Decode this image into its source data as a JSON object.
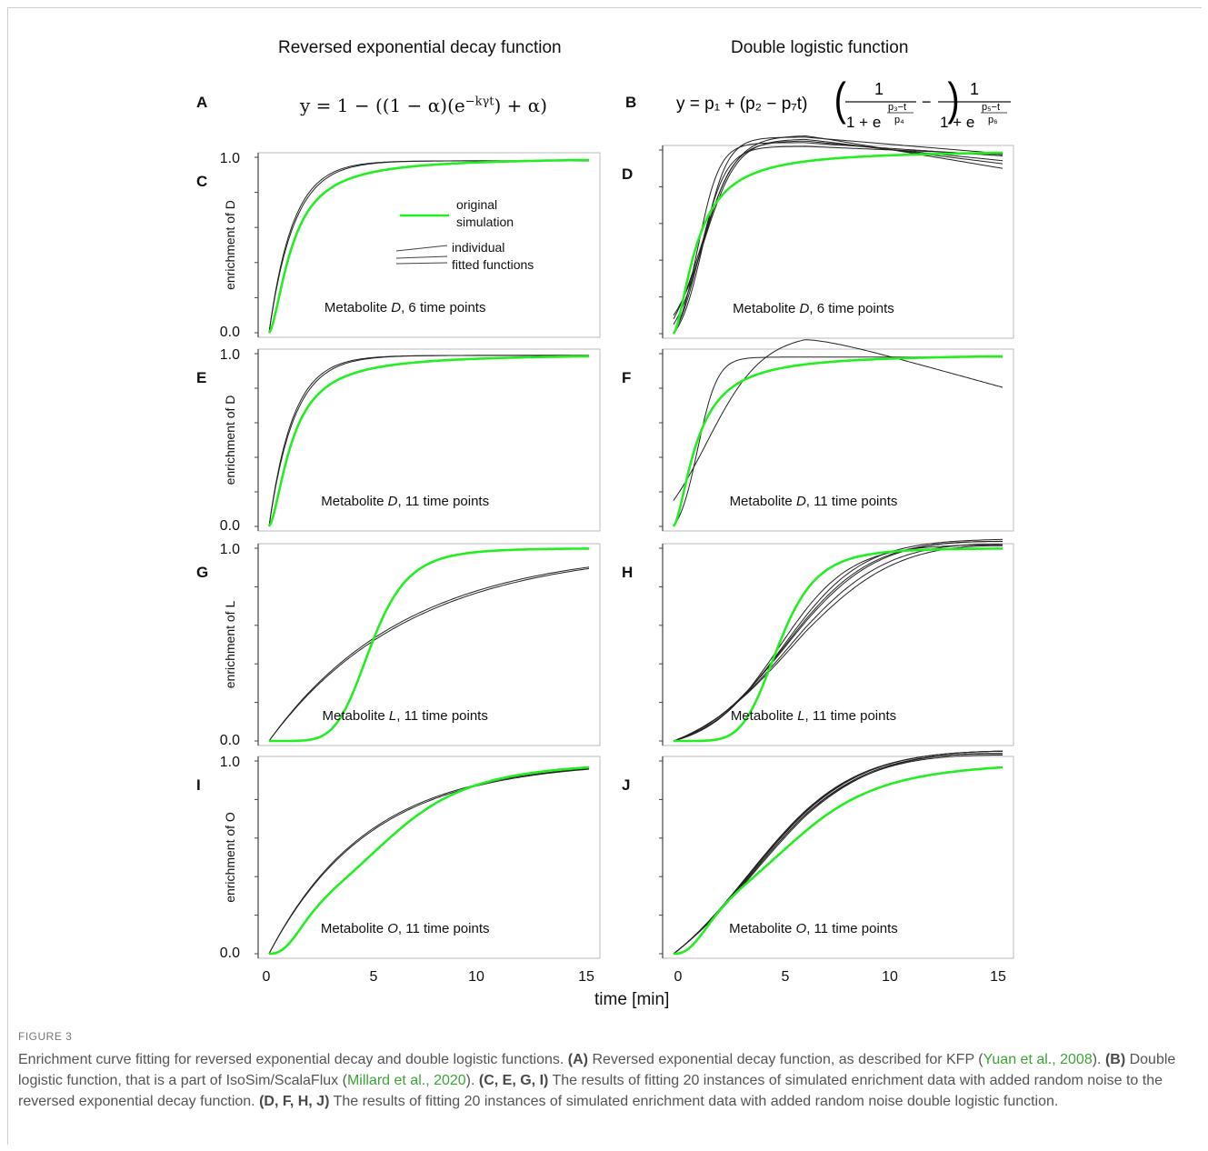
{
  "figure": {
    "col_titles": [
      "Reversed exponential decay function",
      "Double logistic function"
    ],
    "xlabel": "time [min]",
    "equations": {
      "A": {
        "letter": "A",
        "text": "y = 1 − ((1 − α)(e",
        "exponent": "−kγt",
        "tail": ") + α)"
      },
      "B": {
        "letter": "B",
        "lhs": "y = p₁ + (p₂ − p₇t)",
        "num1": "1",
        "den1_base": "1 + e",
        "den1_exp_num": "p₃−t",
        "den1_exp_den": "p₄",
        "minus": "−",
        "num2": "1",
        "den2_base": "1 + e",
        "den2_exp_num": "p₅−t",
        "den2_exp_den": "p₆"
      }
    },
    "legend": {
      "original_line1": "original",
      "original_line2": "simulation",
      "fitted_line1": "individual",
      "fitted_line2": "fitted functions"
    },
    "colors": {
      "original": "#22ee22",
      "fitted": "#222222",
      "axis": "#444444",
      "caption_link": "#3aa535"
    },
    "caption": {
      "heading": "FIGURE 3",
      "s1": "Enrichment curve fitting for reversed exponential decay and double logistic functions. ",
      "b1": "(A)",
      "s2": " Reversed exponential decay function, as described for KFP (",
      "l1": "Yuan et al., 2008",
      "s3": "). ",
      "b2": "(B)",
      "s4": " Double logistic function, that is a part of IsoSim/ScalaFlux (",
      "l2": "Millard et al., 2020",
      "s5": "). ",
      "b3": "(C, E, G, I)",
      "s6": " The results of fitting 20 instances of simulated enrichment data with added random noise to the reversed exponential decay function. ",
      "b4": "(D, F, H, J)",
      "s7": " The results of fitting 20 instances of simulated enrichment data with added random noise double logistic function."
    }
  },
  "chart_data": [
    {
      "panel": "C",
      "type": "line",
      "metabolite": "D",
      "label_pre": "Metabolite ",
      "label_post": ", 6 time points",
      "ylabel": "enrichment of D",
      "yticks": [
        "1.0",
        "0.0"
      ],
      "xlim": [
        0,
        15
      ],
      "ylim": [
        0,
        1
      ],
      "series": [
        {
          "name": "original simulation",
          "model": "hill",
          "params": {
            "n": 1.6,
            "K": 1.1
          }
        },
        {
          "name": "individual fitted functions",
          "model": "expdecay",
          "params": {
            "ks": [
              0.85,
              0.9
            ],
            "top": 0.98
          }
        }
      ]
    },
    {
      "panel": "D",
      "type": "line",
      "metabolite": "D",
      "label_pre": "Metabolite ",
      "label_post": ", 6 time points",
      "ylabel": "",
      "yticks": [],
      "xlim": [
        0,
        15
      ],
      "ylim": [
        0,
        1
      ],
      "series": [
        {
          "name": "original simulation",
          "model": "hill",
          "params": {
            "n": 1.6,
            "K": 1.1
          }
        },
        {
          "name": "individual fitted functions",
          "model": "dlog",
          "params": {
            "variants": [
              [
                0.0,
                1.02,
                1.2,
                0.6,
                0.005
              ],
              [
                0.05,
                1.05,
                1.3,
                0.7,
                0.012
              ],
              [
                0.08,
                1.08,
                1.25,
                0.8,
                0.02
              ],
              [
                0.0,
                1.04,
                1.1,
                0.5,
                0.008
              ],
              [
                0.1,
                1.06,
                1.4,
                0.75,
                0.015
              ],
              [
                0.0,
                1.07,
                1.35,
                0.55,
                0.01
              ]
            ]
          }
        }
      ]
    },
    {
      "panel": "E",
      "type": "line",
      "metabolite": "D",
      "label_pre": "Metabolite ",
      "label_post": ", 11 time points",
      "ylabel": "enrichment of D",
      "yticks": [
        "1.0",
        "0.0"
      ],
      "xlim": [
        0,
        15
      ],
      "ylim": [
        0,
        1
      ],
      "series": [
        {
          "name": "original simulation",
          "model": "hill",
          "params": {
            "n": 1.6,
            "K": 1.1
          }
        },
        {
          "name": "individual fitted functions",
          "model": "expdecay",
          "params": {
            "ks": [
              0.85,
              0.9
            ],
            "top": 0.99
          }
        }
      ]
    },
    {
      "panel": "F",
      "type": "line",
      "metabolite": "D",
      "label_pre": "Metabolite ",
      "label_post": ", 11 time points",
      "ylabel": "",
      "yticks": [],
      "xlim": [
        0,
        15
      ],
      "ylim": [
        0,
        1
      ],
      "series": [
        {
          "name": "original simulation",
          "model": "hill",
          "params": {
            "n": 1.6,
            "K": 1.1
          }
        },
        {
          "name": "individual fitted functions",
          "model": "dlog",
          "params": {
            "variants": [
              [
                0.0,
                0.98,
                1.1,
                0.45,
                0.0
              ],
              [
                0.15,
                1.12,
                1.5,
                1.3,
                0.035
              ]
            ]
          }
        }
      ]
    },
    {
      "panel": "G",
      "type": "line",
      "metabolite": "L",
      "label_pre": "Metabolite ",
      "label_post": ", 11 time points",
      "ylabel": "enrichment of L",
      "yticks": [
        "1.0",
        "0.0"
      ],
      "xlim": [
        0,
        15
      ],
      "ylim": [
        0,
        1
      ],
      "series": [
        {
          "name": "original simulation",
          "model": "hill",
          "params": {
            "n": 5.5,
            "K": 4.8
          }
        },
        {
          "name": "individual fitted functions",
          "model": "expdecay",
          "params": {
            "ks": [
              0.15,
              0.155
            ],
            "top": 1.0
          }
        }
      ]
    },
    {
      "panel": "H",
      "type": "line",
      "metabolite": "L",
      "label_pre": "Metabolite ",
      "label_post": ", 11 time points",
      "ylabel": "",
      "yticks": [],
      "xlim": [
        0,
        15
      ],
      "ylim": [
        0,
        1
      ],
      "series": [
        {
          "name": "original simulation",
          "model": "hill",
          "params": {
            "n": 5.5,
            "K": 4.8
          }
        },
        {
          "name": "individual fitted functions",
          "model": "dlog",
          "params": {
            "variants": [
              [
                0.0,
                1.05,
                5.0,
                1.8,
                0.0
              ],
              [
                0.0,
                1.1,
                5.2,
                2.1,
                0.006
              ],
              [
                0.0,
                1.12,
                5.4,
                2.3,
                0.009
              ],
              [
                0.0,
                1.02,
                4.8,
                1.6,
                0.0
              ],
              [
                0.0,
                1.15,
                5.6,
                2.5,
                0.012
              ],
              [
                0.0,
                1.08,
                5.1,
                2.0,
                0.004
              ]
            ]
          }
        }
      ]
    },
    {
      "panel": "I",
      "type": "line",
      "metabolite": "O",
      "label_pre": "Metabolite ",
      "label_post": ", 11 time points",
      "ylabel": "enrichment of O",
      "yticks": [
        "1.0",
        "0.0"
      ],
      "xlim": [
        0,
        15
      ],
      "ylim": [
        0,
        1
      ],
      "series": [
        {
          "name": "original simulation",
          "model": "twostep",
          "params": {
            "a": 0.4,
            "n1": 2.5,
            "K1": 2.0,
            "n2": 3.5,
            "K2": 6.5
          }
        },
        {
          "name": "individual fitted functions",
          "model": "expdecay",
          "params": {
            "ks": [
              0.21,
              0.215
            ],
            "top": 1.0
          }
        }
      ]
    },
    {
      "panel": "J",
      "type": "line",
      "metabolite": "O",
      "label_pre": "Metabolite ",
      "label_post": ", 11 time points",
      "ylabel": "",
      "yticks": [],
      "xlim": [
        0,
        15
      ],
      "ylim": [
        0,
        1
      ],
      "series": [
        {
          "name": "original simulation",
          "model": "twostep",
          "params": {
            "a": 0.4,
            "n1": 2.5,
            "K1": 2.0,
            "n2": 3.5,
            "K2": 6.5
          }
        },
        {
          "name": "individual fitted functions",
          "model": "dlog",
          "params": {
            "variants": [
              [
                0.0,
                1.1,
                3.5,
                2.5,
                0.004
              ],
              [
                0.0,
                1.12,
                3.6,
                2.6,
                0.007
              ],
              [
                0.0,
                1.08,
                3.4,
                2.4,
                0.002
              ],
              [
                0.0,
                1.14,
                3.7,
                2.7,
                0.009
              ],
              [
                0.0,
                1.1,
                3.55,
                2.55,
                0.006
              ],
              [
                0.0,
                1.09,
                3.45,
                2.45,
                0.003
              ]
            ]
          }
        }
      ]
    }
  ],
  "x_ticks": [
    "0",
    "5",
    "10",
    "15"
  ]
}
